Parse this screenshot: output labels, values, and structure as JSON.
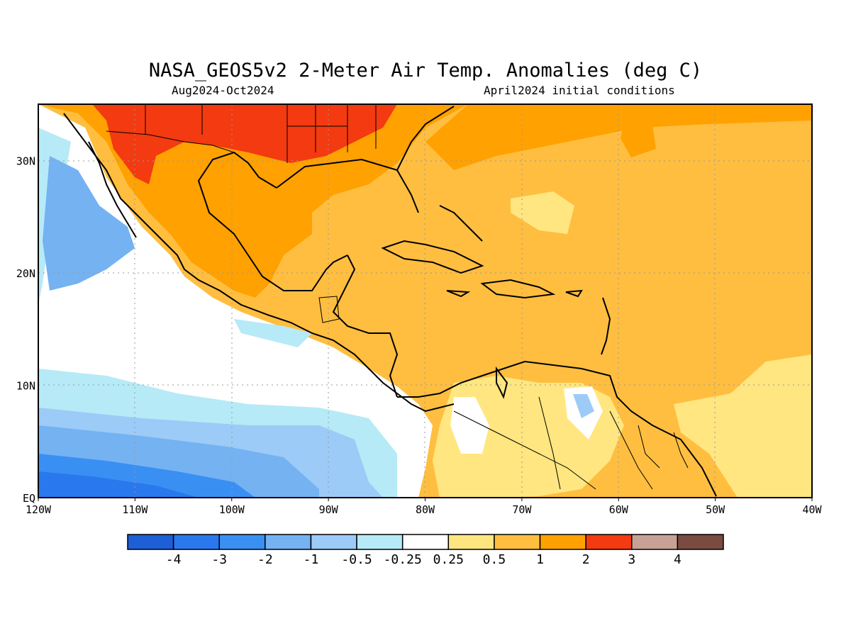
{
  "title": "NASA_GEOS5v2 2-Meter Air Temp. Anomalies (deg C)",
  "period": "Aug2024-Oct2024",
  "initial_conditions": "April2024 initial conditions",
  "map": {
    "lon_range": [
      -120,
      -40
    ],
    "lat_range": [
      0,
      35
    ],
    "lon_labels": [
      "120W",
      "110W",
      "100W",
      "90W",
      "80W",
      "70W",
      "60W",
      "50W",
      "40W"
    ],
    "lat_labels": [
      "EQ",
      "10N",
      "20N",
      "30N"
    ],
    "grid": true
  },
  "legend": {
    "colors": [
      "#1d5fd6",
      "#2a78ee",
      "#3a8ff3",
      "#74b2f2",
      "#9ccbf7",
      "#b6eaf7",
      "#ffffff",
      "#ffe680",
      "#ffbe40",
      "#ffa100",
      "#f33a10",
      "#c7a196",
      "#7a4b40"
    ],
    "labels": [
      "-4",
      "-3",
      "-2",
      "-1",
      "-0.5",
      "-0.25",
      "0.25",
      "0.5",
      "1",
      "2",
      "3",
      "4"
    ]
  }
}
